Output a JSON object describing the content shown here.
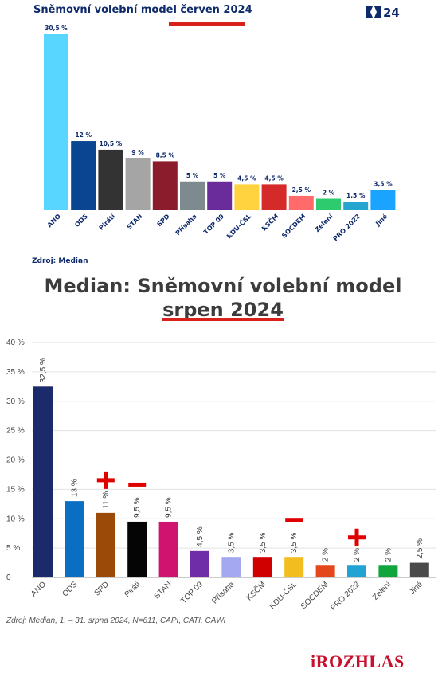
{
  "top_chart": {
    "title": "Sněmovní volební model červen 2024",
    "logo_text": "24",
    "source": "Zdroj: Median"
  },
  "bottom_chart": {
    "title_line1": "Median: Sněmovní volební model",
    "title_line2": "srpen 2024",
    "source": "Zdroj: Median, 1. – 31. srpna 2024, N=611, CAPI, CATI, CAWI",
    "brand": "iROZHLAS"
  },
  "chart_data": [
    {
      "type": "bar",
      "title": "Sněmovní volební model červen 2024",
      "categories": [
        "ANO",
        "ODS",
        "Piráti",
        "STAN",
        "SPD",
        "Přísaha",
        "TOP 09",
        "KDU-ČSL",
        "KSČM",
        "SOCDEM",
        "Zelení",
        "PRO 2022",
        "Jiné"
      ],
      "values": [
        30.5,
        12,
        10.5,
        9,
        8.5,
        5,
        5,
        4.5,
        4.5,
        2.5,
        2,
        1.5,
        3.5
      ],
      "value_labels": [
        "30,5 %",
        "12 %",
        "10,5 %",
        "9 %",
        "8,5 %",
        "5 %",
        "5 %",
        "4,5 %",
        "4,5 %",
        "2,5 %",
        "2 %",
        "1,5 %",
        "3,5 %"
      ],
      "colors": [
        "#58d6ff",
        "#0a4591",
        "#333333",
        "#a5a5a5",
        "#8a1c2c",
        "#7d8b8e",
        "#6a2c9a",
        "#ffd23f",
        "#d42a2a",
        "#ff6b6b",
        "#2dca6e",
        "#27a5d1",
        "#1aa3ff"
      ],
      "ylim": [
        0,
        30.5
      ],
      "source": "Zdroj: Median"
    },
    {
      "type": "bar",
      "title": "Median: Sněmovní volební model srpen 2024",
      "categories": [
        "ANO",
        "ODS",
        "SPD",
        "Piráti",
        "STAN",
        "TOP 09",
        "Přísaha",
        "KSČM",
        "KDU-ČSL",
        "SOCDEM",
        "PRO 2022",
        "Zelení",
        "Jiné"
      ],
      "values": [
        32.5,
        13,
        11,
        9.5,
        9.5,
        4.5,
        3.5,
        3.5,
        3.5,
        2,
        2,
        2,
        2.5
      ],
      "value_labels": [
        "32,5 %",
        "13 %",
        "11 %",
        "9,5 %",
        "9,5 %",
        "4,5 %",
        "3,5 %",
        "3,5 %",
        "3,5 %",
        "2 %",
        "2 %",
        "2 %",
        "2,5 %"
      ],
      "colors": [
        "#1b2a6b",
        "#0a6fc2",
        "#9c4a08",
        "#050505",
        "#d0136e",
        "#6f2da8",
        "#a3a8f0",
        "#d00000",
        "#f2bd1f",
        "#e4471b",
        "#21a3d3",
        "#11a53d",
        "#4a4a4a"
      ],
      "ytick_labels": [
        "0",
        "5 %",
        "10 %",
        "15 %",
        "20 %",
        "25 %",
        "30 %",
        "35 %",
        "40 %"
      ],
      "ylim": [
        0,
        40
      ],
      "grid": true,
      "annotations": [
        {
          "category": "SPD",
          "symbol": "+",
          "color": "#e00000"
        },
        {
          "category": "Piráti",
          "symbol": "−",
          "color": "#e00000"
        },
        {
          "category": "KDU-ČSL",
          "symbol": "−",
          "color": "#e00000"
        },
        {
          "category": "PRO 2022",
          "symbol": "+",
          "color": "#e00000"
        }
      ],
      "source": "Zdroj: Median, 1. – 31. srpna 2024, N=611, CAPI, CATI, CAWI"
    }
  ]
}
